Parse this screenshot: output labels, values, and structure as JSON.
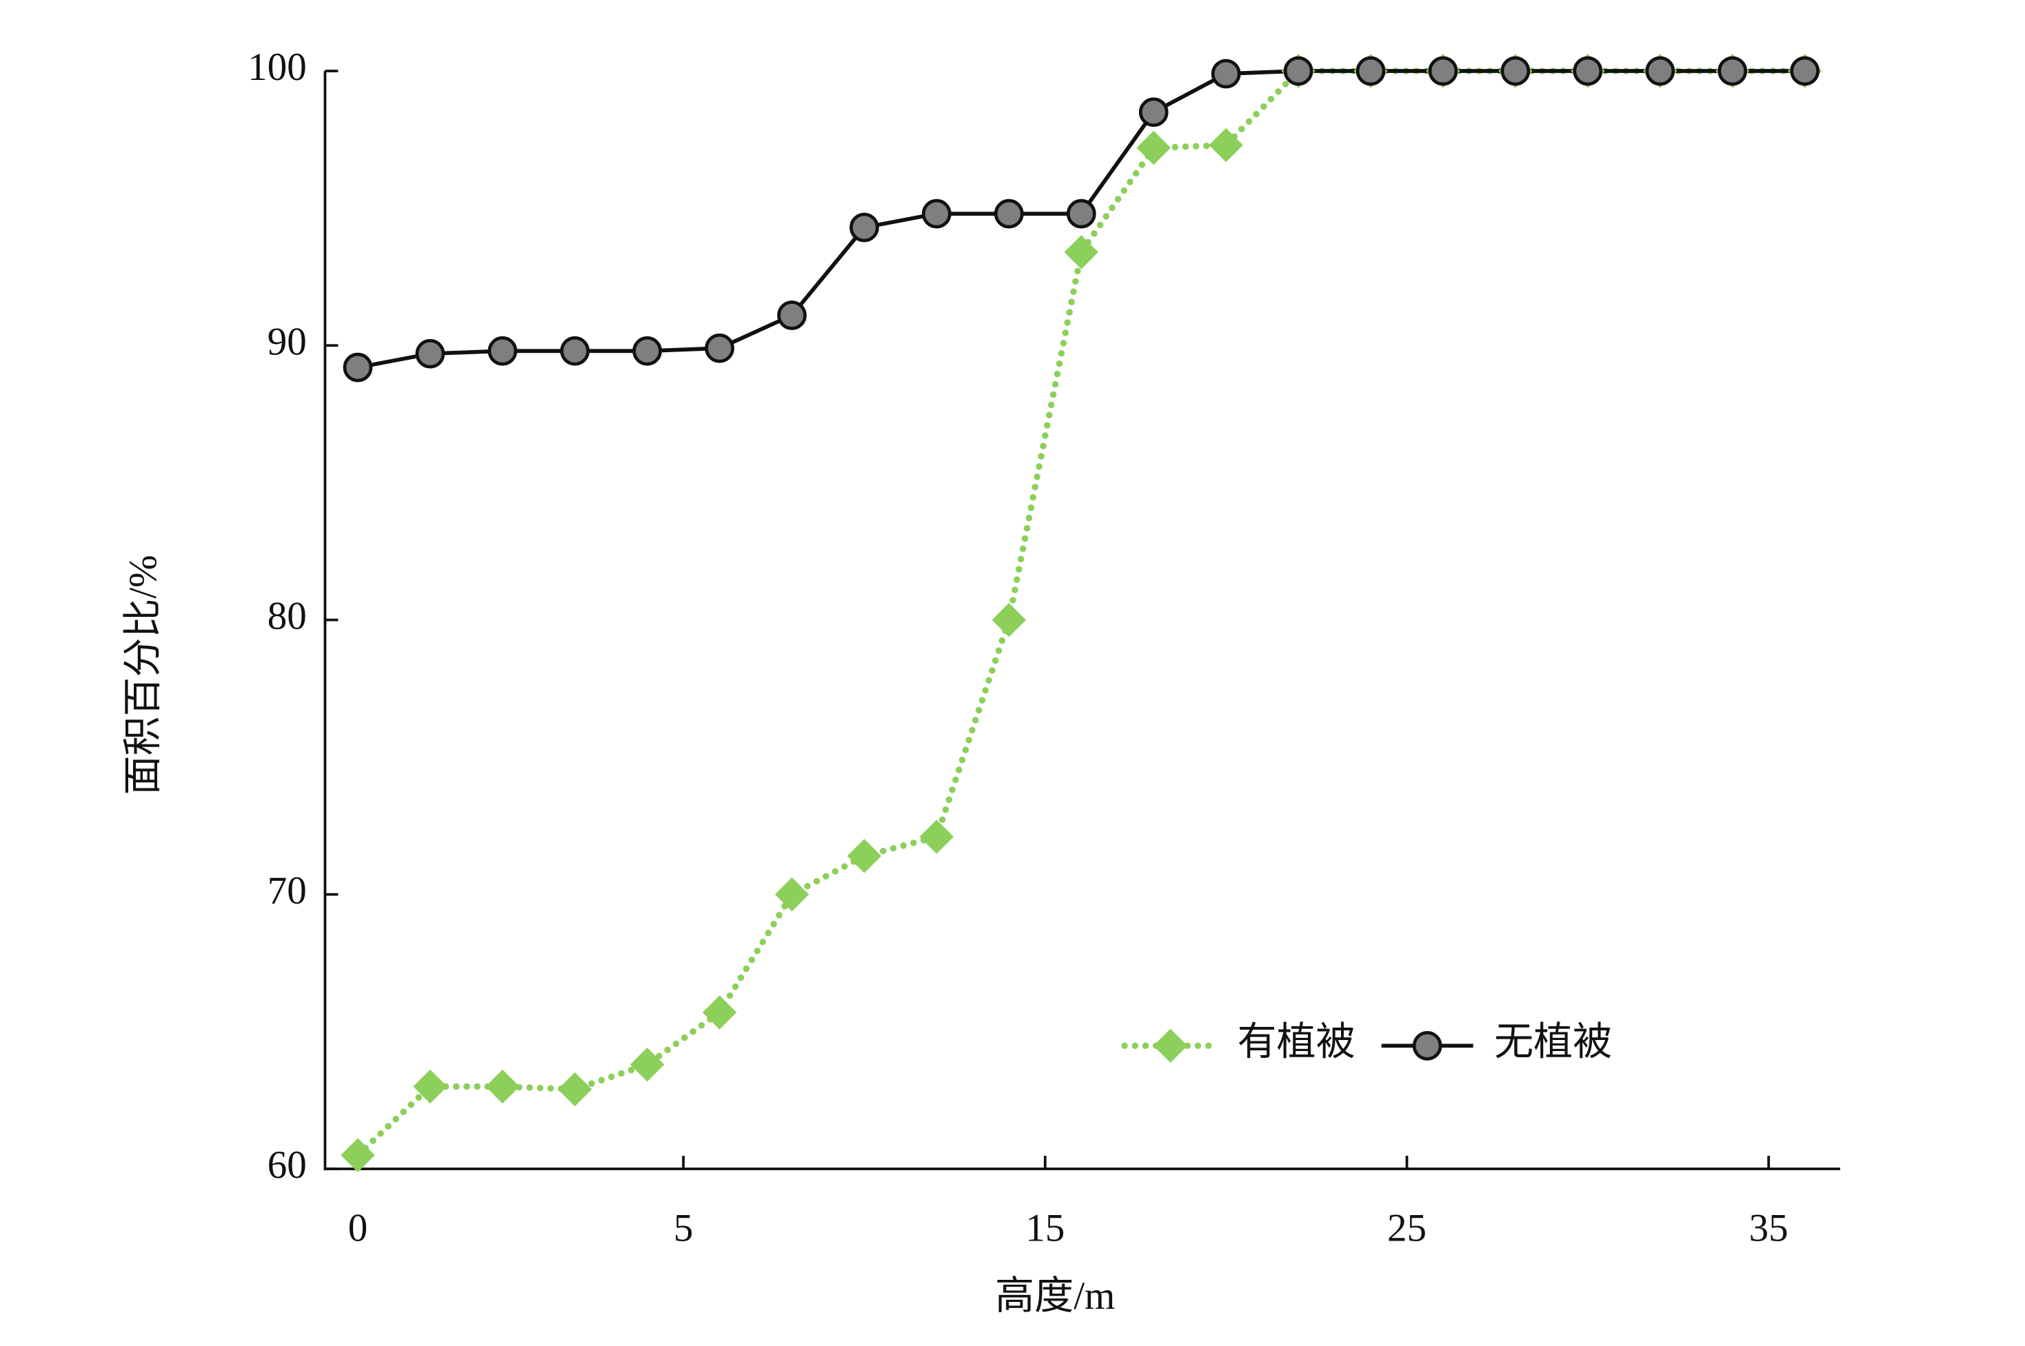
{
  "chart_data": {
    "type": "line",
    "x_label": "高度/m",
    "y_label": "面积百分比/%",
    "categories": [
      "0",
      null,
      null,
      null,
      "5",
      null,
      null,
      null,
      null,
      "15",
      null,
      null,
      null,
      null,
      "25",
      null,
      null,
      null,
      null,
      "35",
      null
    ],
    "series": [
      {
        "name": "有植被",
        "color": "#8ccf5a",
        "marker": "diamond",
        "dash": "dotted",
        "values": [
          60.5,
          63.0,
          63.0,
          62.9,
          63.8,
          65.7,
          70.0,
          71.4,
          72.1,
          80.0,
          93.4,
          97.2,
          97.3,
          100,
          100,
          100,
          100,
          100,
          100,
          100,
          100
        ]
      },
      {
        "name": "无植被",
        "color": "#7f7f7f",
        "marker": "circle",
        "dash": "solid",
        "values": [
          89.2,
          89.7,
          89.8,
          89.8,
          89.8,
          89.9,
          91.1,
          94.3,
          94.8,
          94.8,
          94.8,
          98.5,
          99.9,
          100,
          100,
          100,
          100,
          100,
          100,
          100,
          100
        ]
      }
    ],
    "ylim": [
      60,
      100
    ],
    "yticks": [
      60,
      70,
      80,
      90,
      100
    ],
    "grid": false,
    "legend": "lower right"
  }
}
